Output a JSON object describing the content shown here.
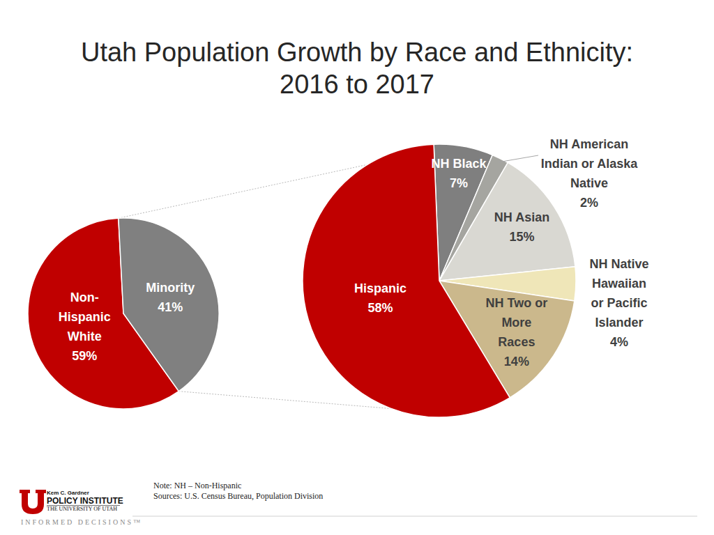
{
  "chart_data": [
    {
      "type": "pie",
      "title": "Utah Population Growth by Race and Ethnicity: 2016 to 2017",
      "categories": [
        "Non-Hispanic White",
        "Minority"
      ],
      "values": [
        59,
        41
      ],
      "value_labels": [
        "59%",
        "41%"
      ],
      "colors": [
        "#c00000",
        "#808080"
      ],
      "data_labels": true
    },
    {
      "type": "pie",
      "categories": [
        "NH Black",
        "NH American Indian or Alaska Native",
        "NH Asian",
        "NH Native Hawaiian or Pacific Islander",
        "NH Two or More Races",
        "Hispanic"
      ],
      "values": [
        7,
        2,
        15,
        4,
        14,
        58
      ],
      "value_labels": [
        "7%",
        "2%",
        "15%",
        "4%",
        "14%",
        "58%"
      ],
      "colors": [
        "#7f7f7f",
        "#a5a5a0",
        "#d9d8d2",
        "#efe6b8",
        "#cbb88c",
        "#c00000"
      ],
      "data_labels": true
    }
  ],
  "footer": {
    "note": "Note: NH – Non-Hispanic",
    "sources": "Sources: U.S. Census Bureau, Population Division",
    "logo": [
      "Kem C. Gardner",
      "POLICY INSTITUTE",
      "THE UNIVERSITY OF UTAH"
    ],
    "tagline": "INFORMED DECISIONS™"
  }
}
